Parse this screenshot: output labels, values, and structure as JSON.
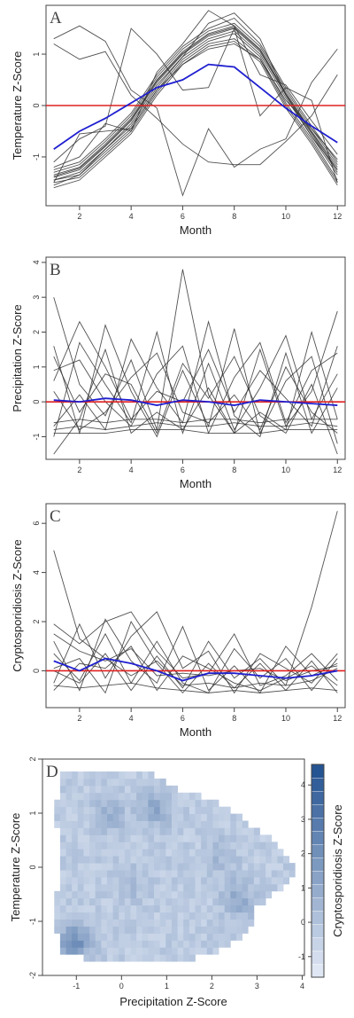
{
  "colors": {
    "series": "#333333",
    "mean": "#1f1fd0",
    "reference": "#e02020",
    "heat_low": "#e6ecf7",
    "heat_high": "#1f4f8f"
  },
  "chart_data": [
    {
      "type": "line",
      "panel": "A",
      "xlabel": "Month",
      "ylabel": "Temperature Z-Score",
      "xlim": [
        0.7,
        12.3
      ],
      "ylim": [
        -1.95,
        1.95
      ],
      "xticks": [
        2,
        4,
        6,
        8,
        10,
        12
      ],
      "yticks": [
        -1,
        0,
        1
      ],
      "x": [
        1,
        2,
        3,
        4,
        5,
        6,
        7,
        8,
        9,
        10,
        11,
        12
      ],
      "mean": [
        -0.85,
        -0.5,
        -0.25,
        0.05,
        0.35,
        0.5,
        0.8,
        0.75,
        0.35,
        -0.05,
        -0.4,
        -0.72
      ],
      "reference": 0,
      "series": [
        {
          "values": [
            -1.45,
            -1.3,
            -0.85,
            -0.35,
            0.4,
            0.95,
            1.3,
            1.45,
            1.0,
            0.15,
            -0.6,
            -1.35
          ]
        },
        {
          "values": [
            -1.35,
            -1.2,
            -0.75,
            -0.25,
            0.5,
            1.05,
            1.4,
            1.55,
            1.1,
            0.25,
            -0.5,
            -1.2
          ]
        },
        {
          "values": [
            -1.55,
            -1.35,
            -0.9,
            -0.45,
            0.3,
            0.9,
            1.25,
            1.4,
            0.95,
            0.05,
            -0.65,
            -1.45
          ]
        },
        {
          "values": [
            -1.4,
            -1.25,
            -0.8,
            -0.3,
            0.45,
            1.0,
            1.35,
            1.5,
            1.05,
            0.2,
            -0.55,
            -1.3
          ]
        },
        {
          "values": [
            -1.5,
            -1.4,
            -0.95,
            -0.5,
            0.25,
            0.85,
            1.2,
            1.3,
            0.9,
            0.0,
            -0.7,
            -1.5
          ]
        },
        {
          "values": [
            -1.3,
            -1.15,
            -0.7,
            -0.2,
            0.55,
            1.1,
            1.45,
            1.6,
            1.15,
            0.3,
            -0.45,
            -1.15
          ]
        },
        {
          "values": [
            -1.6,
            -1.45,
            -1.0,
            -0.55,
            0.2,
            0.8,
            1.15,
            1.25,
            0.85,
            -0.05,
            -0.75,
            -1.55
          ]
        },
        {
          "values": [
            -1.25,
            -1.1,
            -0.65,
            -0.15,
            0.6,
            1.15,
            1.5,
            1.7,
            1.2,
            0.35,
            -0.4,
            -1.1
          ]
        },
        {
          "values": [
            -1.45,
            -1.35,
            -0.85,
            -0.4,
            0.35,
            0.95,
            1.6,
            1.8,
            1.3,
            0.2,
            -0.6,
            -1.25
          ]
        },
        {
          "values": [
            -1.38,
            -1.22,
            -0.78,
            -0.28,
            0.48,
            1.02,
            1.38,
            1.52,
            1.08,
            0.22,
            -0.52,
            -1.25
          ]
        },
        {
          "values": [
            -1.5,
            -0.55,
            -0.5,
            -0.45,
            0.3,
            0.8,
            1.1,
            1.2,
            0.9,
            0.1,
            -0.45,
            -1.05
          ]
        },
        {
          "values": [
            -1.2,
            -1.0,
            -0.35,
            -0.5,
            0.65,
            1.2,
            1.85,
            1.55,
            0.6,
            0.4,
            -0.3,
            -0.95
          ]
        },
        {
          "values": [
            1.3,
            1.55,
            1.25,
            0.3,
            -0.05,
            -1.75,
            -0.45,
            -1.2,
            -0.85,
            -0.65,
            0.45,
            1.1
          ]
        },
        {
          "values": [
            1.2,
            0.9,
            1.05,
            0.2,
            -0.25,
            -0.75,
            -1.1,
            -1.15,
            -1.15,
            -0.7,
            -0.2,
            0.6
          ]
        },
        {
          "values": [
            -1.1,
            -0.65,
            -0.4,
            1.5,
            1.0,
            0.3,
            0.35,
            1.5,
            -0.2,
            0.35,
            0.1,
            -1.5
          ]
        }
      ]
    },
    {
      "type": "line",
      "panel": "B",
      "xlabel": "Month",
      "ylabel": "Precipitation Z-Score",
      "xlim": [
        0.7,
        12.3
      ],
      "ylim": [
        -1.65,
        4.15
      ],
      "xticks": [
        2,
        4,
        6,
        8,
        10,
        12
      ],
      "yticks": [
        -1,
        0,
        1,
        2,
        3,
        4
      ],
      "x": [
        1,
        2,
        3,
        4,
        5,
        6,
        7,
        8,
        9,
        10,
        11,
        12
      ],
      "mean": [
        0.05,
        0.0,
        0.1,
        0.05,
        -0.1,
        0.05,
        0.0,
        -0.1,
        0.05,
        0.0,
        -0.05,
        -0.1
      ],
      "reference": 0,
      "series": [
        {
          "values": [
            3.0,
            0.5,
            -0.4,
            1.2,
            -0.8,
            3.8,
            0.2,
            -0.9,
            1.5,
            -0.7,
            0.3,
            2.6
          ]
        },
        {
          "values": [
            -1.0,
            1.7,
            0.5,
            -0.6,
            2.0,
            -0.9,
            1.1,
            -0.8,
            0.4,
            1.9,
            -0.5,
            0.8
          ]
        },
        {
          "values": [
            1.6,
            -0.9,
            2.2,
            0.3,
            -1.0,
            0.9,
            -0.7,
            2.1,
            -0.9,
            0.6,
            1.3,
            -1.2
          ]
        },
        {
          "values": [
            -0.7,
            0.2,
            -0.8,
            1.8,
            0.4,
            -0.6,
            2.3,
            -0.4,
            -1.0,
            1.4,
            -0.9,
            0.4
          ]
        },
        {
          "values": [
            0.9,
            1.2,
            0.0,
            -0.7,
            0.8,
            1.6,
            -0.9,
            0.7,
            1.7,
            -0.6,
            0.9,
            1.4
          ]
        },
        {
          "values": [
            -1.5,
            -0.5,
            1.5,
            -0.9,
            -0.3,
            -0.8,
            0.4,
            -0.9,
            -0.3,
            -0.8,
            2.0,
            -0.5
          ]
        },
        {
          "values": [
            0.3,
            -0.8,
            -0.3,
            0.7,
            1.4,
            -0.3,
            -0.6,
            0.2,
            -0.8,
            1.0,
            -0.3,
            -0.9
          ]
        },
        {
          "values": [
            -0.9,
            -0.9,
            -0.9,
            -0.8,
            -0.8,
            -0.8,
            -0.9,
            -0.9,
            -0.9,
            -0.8,
            -0.8,
            -0.8
          ]
        },
        {
          "values": [
            -0.8,
            -0.7,
            -0.8,
            -0.7,
            -0.6,
            -0.7,
            -0.7,
            -0.6,
            -0.7,
            -0.7,
            -0.6,
            -0.7
          ]
        },
        {
          "values": [
            -0.6,
            -0.5,
            -0.6,
            -0.5,
            -0.5,
            -0.6,
            -0.5,
            -0.5,
            -0.6,
            -0.5,
            -0.5,
            -0.5
          ]
        },
        {
          "values": [
            0.6,
            2.3,
            1.0,
            -0.5,
            0.3,
            0.0,
            1.5,
            -0.3,
            0.9,
            0.1,
            -0.7,
            1.6
          ]
        },
        {
          "values": [
            1.3,
            -0.3,
            0.8,
            0.5,
            -0.9,
            1.1,
            0.1,
            1.3,
            -0.4,
            -0.9,
            0.5,
            -1.5
          ]
        }
      ]
    },
    {
      "type": "line",
      "panel": "C",
      "xlabel": "Month",
      "ylabel": "Cryptosporidiosis Z-Score",
      "xlim": [
        0.7,
        12.3
      ],
      "ylim": [
        -1.5,
        6.8
      ],
      "xticks": [
        2,
        4,
        6,
        8,
        10,
        12
      ],
      "yticks": [
        0,
        2,
        4,
        6
      ],
      "x": [
        1,
        2,
        3,
        4,
        5,
        6,
        7,
        8,
        9,
        10,
        11,
        12
      ],
      "mean": [
        0.4,
        0.0,
        0.5,
        0.3,
        0.0,
        -0.4,
        -0.1,
        -0.1,
        -0.2,
        -0.3,
        -0.2,
        0.0
      ],
      "reference": 0,
      "series": [
        {
          "values": [
            4.9,
            1.3,
            0.5,
            -0.2,
            0.4,
            -0.6,
            -0.5,
            -0.7,
            -0.5,
            -0.6,
            2.6,
            6.5
          ]
        },
        {
          "values": [
            1.9,
            1.1,
            2.0,
            2.4,
            0.8,
            -0.3,
            -0.1,
            1.5,
            -0.6,
            -0.2,
            0.7,
            -0.4
          ]
        },
        {
          "values": [
            -0.5,
            1.9,
            -0.3,
            1.4,
            2.4,
            0.1,
            0.8,
            -0.9,
            0.7,
            0.1,
            -0.5,
            0.7
          ]
        },
        {
          "values": [
            1.2,
            -0.8,
            2.1,
            0.4,
            -0.5,
            1.8,
            -0.8,
            0.2,
            -0.9,
            1.0,
            -0.2,
            0.3
          ]
        },
        {
          "values": [
            0.1,
            0.5,
            -0.9,
            2.0,
            0.3,
            -0.9,
            0.3,
            -0.7,
            0.3,
            -0.8,
            0.4,
            -0.9
          ]
        },
        {
          "values": [
            0.7,
            -0.4,
            1.5,
            -0.5,
            1.2,
            -0.5,
            -0.9,
            0.9,
            -0.3,
            0.5,
            -0.8,
            0.5
          ]
        },
        {
          "values": [
            -0.8,
            0.3,
            0.1,
            1.0,
            -0.8,
            0.6,
            0.1,
            -0.5,
            -0.8,
            -0.3,
            0.2,
            -0.6
          ]
        },
        {
          "values": [
            -0.6,
            -0.7,
            -0.6,
            -0.5,
            -0.7,
            -0.8,
            -0.9,
            -0.8,
            -0.9,
            -0.8,
            -0.7,
            -0.8
          ]
        },
        {
          "values": [
            1.5,
            0.8,
            0.4,
            0.9,
            -0.2,
            -0.1,
            -0.2,
            0.0,
            0.1,
            -0.4,
            0.0,
            0.2
          ]
        },
        {
          "values": [
            0.0,
            -0.5,
            0.7,
            -0.8,
            0.6,
            -0.7,
            1.2,
            -0.3,
            0.5,
            -0.6,
            -0.4,
            0.1
          ]
        }
      ]
    },
    {
      "type": "heatmap",
      "panel": "D",
      "xlabel": "Precipitation Z-Score",
      "ylabel": "Temperature Z-Score",
      "colorbar_label": "Cryptosporidiosis Z-Score",
      "xlim": [
        -1.75,
        4.05
      ],
      "ylim": [
        -2.0,
        2.0
      ],
      "xticks": [
        -1,
        0,
        1,
        2,
        3,
        4
      ],
      "yticks": [
        -2,
        -1,
        0,
        1,
        2
      ],
      "colorbar_ticks": [
        -1,
        0,
        1,
        2,
        3,
        4
      ],
      "colorbar_range": [
        -1.6,
        4.6
      ],
      "region": [
        [
          -1.4,
          1.75
        ],
        [
          0.55,
          1.75
        ],
        [
          1.4,
          1.4
        ],
        [
          2.3,
          1.15
        ],
        [
          3.0,
          0.7
        ],
        [
          3.55,
          0.35
        ],
        [
          3.85,
          0.0
        ],
        [
          3.7,
          -0.3
        ],
        [
          3.0,
          -0.75
        ],
        [
          2.8,
          -1.2
        ],
        [
          2.3,
          -1.5
        ],
        [
          1.5,
          -1.7
        ],
        [
          -0.3,
          -1.75
        ],
        [
          -1.3,
          -1.6
        ],
        [
          -1.45,
          -1.1
        ],
        [
          -1.5,
          -0.7
        ],
        [
          -1.4,
          -0.4
        ],
        [
          -1.3,
          0.4
        ],
        [
          -1.45,
          0.8
        ]
      ],
      "hotspots": [
        {
          "x": 0.75,
          "y": 1.1,
          "value": 1.8
        },
        {
          "x": -0.25,
          "y": 1.0,
          "value": 1.2
        },
        {
          "x": -1.05,
          "y": -1.4,
          "value": 3.2
        },
        {
          "x": 2.6,
          "y": -0.6,
          "value": 1.5
        },
        {
          "x": 2.2,
          "y": 0.2,
          "value": 0.8
        },
        {
          "x": 0.2,
          "y": -0.3,
          "value": 0.6
        }
      ],
      "base_value": -0.3
    }
  ]
}
